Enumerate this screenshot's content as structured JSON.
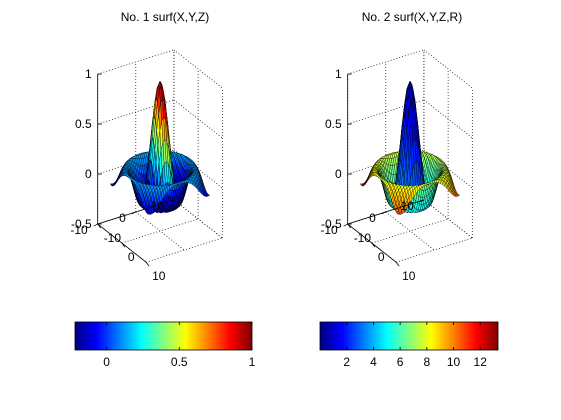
{
  "chart_data": [
    {
      "type": "surface",
      "title": "No. 1 surf(X,Y,Z)",
      "function": "sin(r)/r, r = sqrt(x^2+y^2)+eps, x,y in [-8,8]",
      "grid_size": 33,
      "color_by": "Z",
      "colormap": "jet",
      "z_range": [
        -0.5,
        1
      ],
      "z_ticks": [
        "-0.5",
        "0",
        "0.5",
        "1"
      ],
      "x_ticks": [
        "-10",
        "0",
        "10"
      ],
      "y_ticks": [
        "-10",
        "0",
        "10"
      ],
      "grid": true,
      "colorbar": {
        "orientation": "horizontal",
        "range": [
          -0.217,
          1
        ],
        "tick_values": [
          0,
          0.5,
          1
        ],
        "tick_labels": [
          "0",
          "0.5",
          "1"
        ]
      }
    },
    {
      "type": "surface",
      "title": "No. 2 surf(X,Y,Z,R)",
      "function": "sin(r)/r, r = sqrt(x^2+y^2)+eps, x,y in [-8,8]",
      "grid_size": 33,
      "color_by": "R",
      "colormap": "jet",
      "z_range": [
        -0.5,
        1
      ],
      "z_ticks": [
        "-0.5",
        "0",
        "0.5",
        "1"
      ],
      "x_ticks": [
        "-10",
        "0",
        "10"
      ],
      "y_ticks": [
        "-10",
        "0",
        "10"
      ],
      "grid": true,
      "colorbar": {
        "orientation": "horizontal",
        "range": [
          0,
          13.33
        ],
        "tick_values": [
          2,
          4,
          6,
          8,
          10,
          12
        ],
        "tick_labels": [
          "2",
          "4",
          "6",
          "8",
          "10",
          "12"
        ]
      }
    }
  ]
}
